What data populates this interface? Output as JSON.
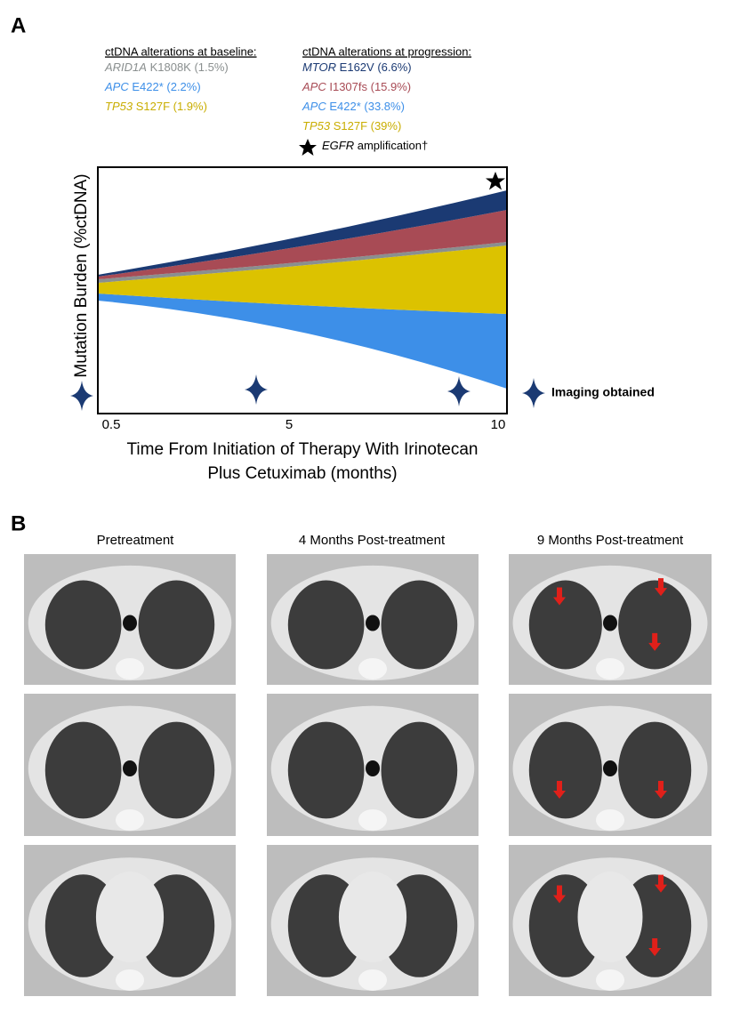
{
  "panel_a": {
    "label": "A",
    "baseline": {
      "title": "ctDNA alterations at baseline:",
      "items": [
        {
          "gene": "ARID1A",
          "detail": "K1808K (1.5%)"
        },
        {
          "gene": "APC",
          "detail": "E422* (2.2%)"
        },
        {
          "gene": "TP53",
          "detail": "S127F (1.9%)"
        }
      ]
    },
    "progression": {
      "title": "ctDNA alterations at progression:",
      "items": [
        {
          "gene": "MTOR",
          "detail": "E162V (6.6%)"
        },
        {
          "gene": "APC",
          "detail": "I1307fs (15.9%)"
        },
        {
          "gene": "APC",
          "detail": "E422* (33.8%)"
        },
        {
          "gene": "TP53",
          "detail": "S127F (39%)"
        }
      ],
      "amplification": {
        "gene": "EGFR",
        "detail": "amplification†"
      }
    },
    "y_axis_label": "Mutation Burden (%ctDNA)",
    "x_ticks": [
      0.5,
      5,
      10
    ],
    "x_axis_label": [
      "Time From Initiation of Therapy With Irinotecan",
      "Plus Cetuximab (months)"
    ],
    "imaging_legend": "Imaging obtained"
  },
  "panel_b": {
    "label": "B",
    "columns": [
      "Pretreatment",
      "4 Months Post-treatment",
      "9 Months Post-treatment"
    ]
  }
}
